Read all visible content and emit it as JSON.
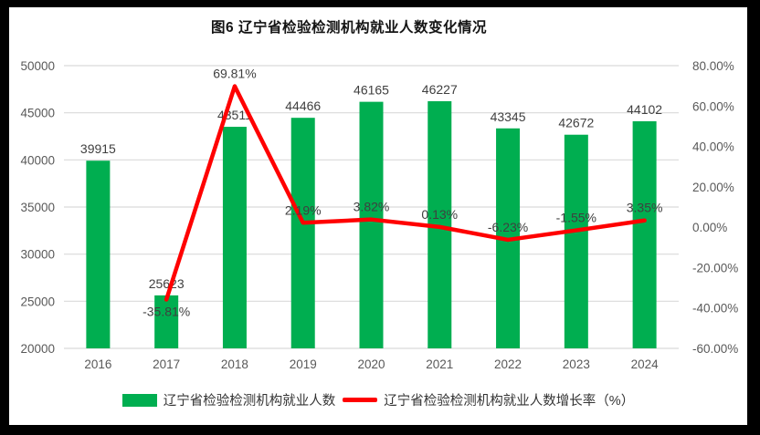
{
  "frame": {
    "background": "#000000"
  },
  "chart_data": {
    "type": "combo-bar-line",
    "title": "图6 辽宁省检验检测机构就业人数变化情况",
    "categories": [
      "2016",
      "2017",
      "2018",
      "2019",
      "2020",
      "2021",
      "2022",
      "2023",
      "2024"
    ],
    "series": [
      {
        "name": "辽宁省检验检测机构就业人数",
        "type": "bar",
        "axis": "left",
        "color": "#00AE50",
        "values": [
          39915,
          25623,
          43511,
          44466,
          46165,
          46227,
          43345,
          42672,
          44102
        ],
        "labels": [
          "39915",
          "25623",
          "43511",
          "44466",
          "46165",
          "46227",
          "43345",
          "42672",
          "44102"
        ]
      },
      {
        "name": "辽宁省检验检测机构就业人数增长率（%）",
        "type": "line",
        "axis": "right",
        "color": "#FF0000",
        "values": [
          null,
          -35.81,
          69.81,
          2.19,
          3.82,
          0.13,
          -6.23,
          -1.55,
          3.35
        ],
        "labels": [
          null,
          "-35.81%",
          "69.81%",
          "2.19%",
          "3.82%",
          "0.13%",
          "-6.23%",
          "-1.55%",
          "3.35%"
        ]
      }
    ],
    "left_axis": {
      "min": 20000,
      "max": 50000,
      "step": 5000,
      "tick_labels": [
        "50000",
        "45000",
        "40000",
        "35000",
        "30000",
        "25000",
        "20000"
      ]
    },
    "right_axis": {
      "min": -60,
      "max": 80,
      "step": 20,
      "tick_labels": [
        "80.00%",
        "60.00%",
        "40.00%",
        "20.00%",
        "0.00%",
        "-20.00%",
        "-40.00%",
        "-60.00%"
      ]
    },
    "grid": true,
    "legend_position": "bottom",
    "colors": {
      "grid": "#D9D9D9",
      "axis_text": "#595959",
      "data_label": "#3F3F3F",
      "title": "#141414"
    }
  }
}
